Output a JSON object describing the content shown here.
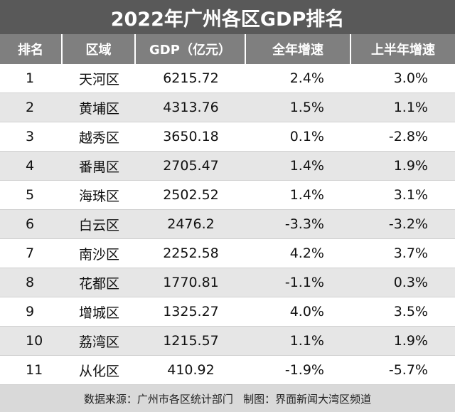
{
  "title": "2022年广州各区GDP排名",
  "table": {
    "header": [
      "排名",
      "区域",
      "GDP（亿元）",
      "全年增速",
      "上半年增速"
    ],
    "rows": [
      [
        "1",
        "天河区",
        "6215.72",
        "2.4%",
        "3.0%"
      ],
      [
        "2",
        "黄埔区",
        "4313.76",
        "1.5%",
        "1.1%"
      ],
      [
        "3",
        "越秀区",
        "3650.18",
        "0.1%",
        "-2.8%"
      ],
      [
        "4",
        "番禺区",
        "2705.47",
        "1.4%",
        "1.9%"
      ],
      [
        "5",
        "海珠区",
        "2502.52",
        "1.4%",
        "3.1%"
      ],
      [
        "6",
        "白云区",
        "2476.2",
        "-3.3%",
        "-3.2%"
      ],
      [
        "7",
        "南沙区",
        "2252.58",
        "4.2%",
        "3.7%"
      ],
      [
        "8",
        "花都区",
        "1770.81",
        "-1.1%",
        "0.3%"
      ],
      [
        "9",
        "增城区",
        "1325.27",
        "4.0%",
        "3.5%"
      ],
      [
        "10",
        "荔湾区",
        "1215.57",
        "1.1%",
        "1.9%"
      ],
      [
        "11",
        "从化区",
        "410.92",
        "-1.9%",
        "-5.7%"
      ]
    ]
  },
  "footer": "数据来源：广州市各区统计部门   制图：界面新闻大湾区频道"
}
